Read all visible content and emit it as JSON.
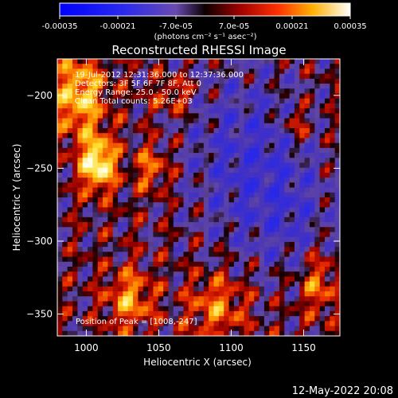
{
  "colorbar": {
    "tick_labels": [
      "-0.00035",
      "-0.00021",
      "-7.0e-05",
      "7.0e-05",
      "0.00021",
      "0.00035"
    ],
    "unit_label": "(photons cm⁻² s⁻¹ asec⁻²)",
    "range": [
      -0.00035,
      0.00035
    ]
  },
  "plot": {
    "title": "Reconstructed RHESSI Image",
    "info_lines": [
      "19-Jul-2012 12:31:36.000 to 12:37:36.000",
      "Detectors: 3F 5F 6F 7F 8F, Att 0",
      "Energy Range: 25.0 - 50.0 keV",
      "Clean     Total counts: 5.26E+03"
    ],
    "peak_text": "Position of Peak = [1008,-247]"
  },
  "timestamp": "12-May-2022 20:08",
  "chart_data": {
    "type": "heatmap",
    "title": "Reconstructed RHESSI Image",
    "xlabel": "Heliocentric X (arcsec)",
    "ylabel": "Heliocentric Y (arcsec)",
    "xlim": [
      980,
      1175
    ],
    "ylim": [
      -365,
      -175
    ],
    "x_ticks": [
      1000,
      1050,
      1100,
      1150
    ],
    "y_ticks": [
      -200,
      -250,
      -300,
      -350
    ],
    "peak": [
      1008,
      -247
    ],
    "colormap": "blue-purple-black-red-yellow-white",
    "colorbar_range": [
      -0.00035,
      0.00035
    ]
  }
}
